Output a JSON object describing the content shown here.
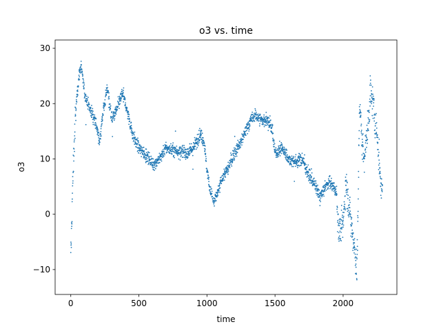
{
  "colors": {
    "marker": "#1f77b4",
    "axis": "#000000",
    "background": "#ffffff"
  },
  "chart_data": {
    "type": "scatter",
    "title": "o3 vs. time",
    "xlabel": "time",
    "ylabel": "o3",
    "xlim": [
      -115,
      2395
    ],
    "ylim": [
      -14.5,
      31.5
    ],
    "xticks": [
      0,
      500,
      1000,
      1500,
      2000
    ],
    "xtick_labels": [
      "0",
      "500",
      "1000",
      "1500",
      "2000"
    ],
    "yticks": [
      -10,
      0,
      10,
      20,
      30
    ],
    "ytick_labels": [
      "−10",
      "0",
      "10",
      "20",
      "30"
    ],
    "grid": false,
    "n_points": 2290,
    "trend": [
      [
        0,
        -9
      ],
      [
        8,
        0
      ],
      [
        20,
        10
      ],
      [
        40,
        20
      ],
      [
        60,
        25
      ],
      [
        75,
        27
      ],
      [
        100,
        22
      ],
      [
        140,
        19
      ],
      [
        180,
        17
      ],
      [
        210,
        13
      ],
      [
        240,
        19
      ],
      [
        270,
        23
      ],
      [
        300,
        17
      ],
      [
        340,
        19
      ],
      [
        380,
        22
      ],
      [
        420,
        18
      ],
      [
        460,
        14
      ],
      [
        500,
        12
      ],
      [
        560,
        10.5
      ],
      [
        600,
        9
      ],
      [
        650,
        10
      ],
      [
        700,
        12
      ],
      [
        750,
        11.5
      ],
      [
        800,
        11.5
      ],
      [
        850,
        11
      ],
      [
        900,
        12
      ],
      [
        950,
        14.5
      ],
      [
        980,
        13
      ],
      [
        1000,
        8
      ],
      [
        1020,
        5
      ],
      [
        1050,
        2
      ],
      [
        1080,
        4
      ],
      [
        1120,
        7
      ],
      [
        1150,
        8
      ],
      [
        1200,
        11
      ],
      [
        1250,
        13
      ],
      [
        1300,
        16
      ],
      [
        1350,
        18
      ],
      [
        1400,
        17
      ],
      [
        1450,
        17
      ],
      [
        1480,
        15
      ],
      [
        1500,
        11
      ],
      [
        1550,
        12
      ],
      [
        1600,
        10
      ],
      [
        1650,
        9.5
      ],
      [
        1700,
        10
      ],
      [
        1750,
        7
      ],
      [
        1800,
        5
      ],
      [
        1830,
        3
      ],
      [
        1870,
        5
      ],
      [
        1900,
        6
      ],
      [
        1950,
        4
      ],
      [
        1970,
        -3
      ],
      [
        2000,
        -2
      ],
      [
        2020,
        6
      ],
      [
        2050,
        0
      ],
      [
        2080,
        -5
      ],
      [
        2100,
        -10
      ],
      [
        2110,
        0
      ],
      [
        2120,
        20
      ],
      [
        2150,
        10
      ],
      [
        2180,
        15
      ],
      [
        2200,
        22
      ],
      [
        2220,
        20
      ],
      [
        2250,
        14
      ],
      [
        2280,
        5
      ]
    ]
  }
}
